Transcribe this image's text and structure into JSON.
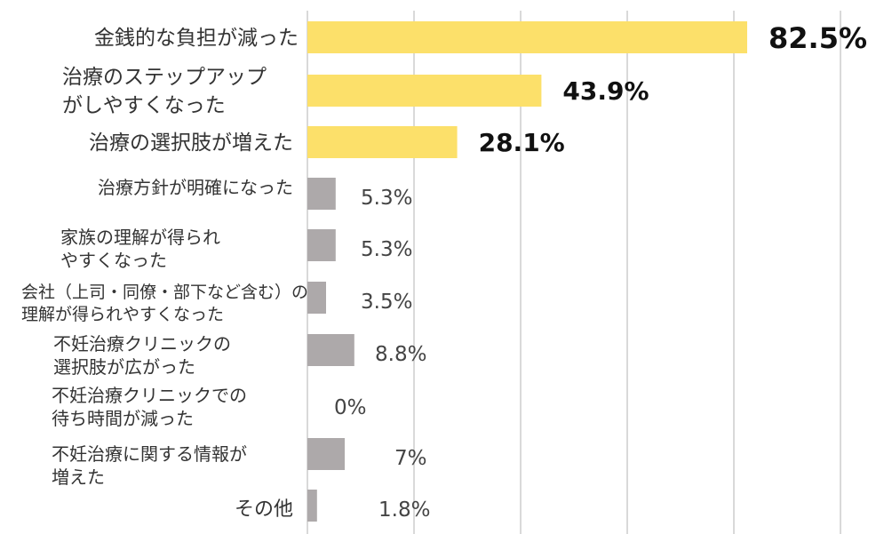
{
  "chart_data": {
    "type": "bar",
    "orientation": "horizontal",
    "title": "",
    "xlabel": "",
    "ylabel": "",
    "xlim": [
      0,
      100
    ],
    "grid": true,
    "legend": "none",
    "categories": [
      [
        "金銭的な負担が減った"
      ],
      [
        "治療のステップアップ",
        "がしやすくなった"
      ],
      [
        "治療の選択肢が増えた"
      ],
      [
        "治療方針が明確になった"
      ],
      [
        "家族の理解が得られ",
        "やすくなった"
      ],
      [
        "会社（上司・同僚・部下など含む）の",
        "理解が得られやすくなった"
      ],
      [
        "不妊治療クリニックの",
        "選択肢が広がった"
      ],
      [
        "不妊治療クリニックでの",
        "待ち時間が減った"
      ],
      [
        "不妊治療に関する情報が",
        "増えた"
      ],
      [
        "その他"
      ]
    ],
    "values": [
      82.5,
      43.9,
      28.1,
      5.3,
      5.3,
      3.5,
      8.8,
      0,
      7,
      1.8
    ],
    "value_labels": [
      "82.5%",
      "43.9%",
      "28.1%",
      "5.3%",
      "5.3%",
      "3.5%",
      "8.8%",
      "0%",
      "7%",
      "1.8%"
    ],
    "highlight_count": 3,
    "colors": {
      "highlight": "#FCE06A",
      "normal": "#ADA9AA",
      "grid": "#D9D9D9",
      "highlight_text": "#111111",
      "normal_text": "#444444"
    }
  }
}
